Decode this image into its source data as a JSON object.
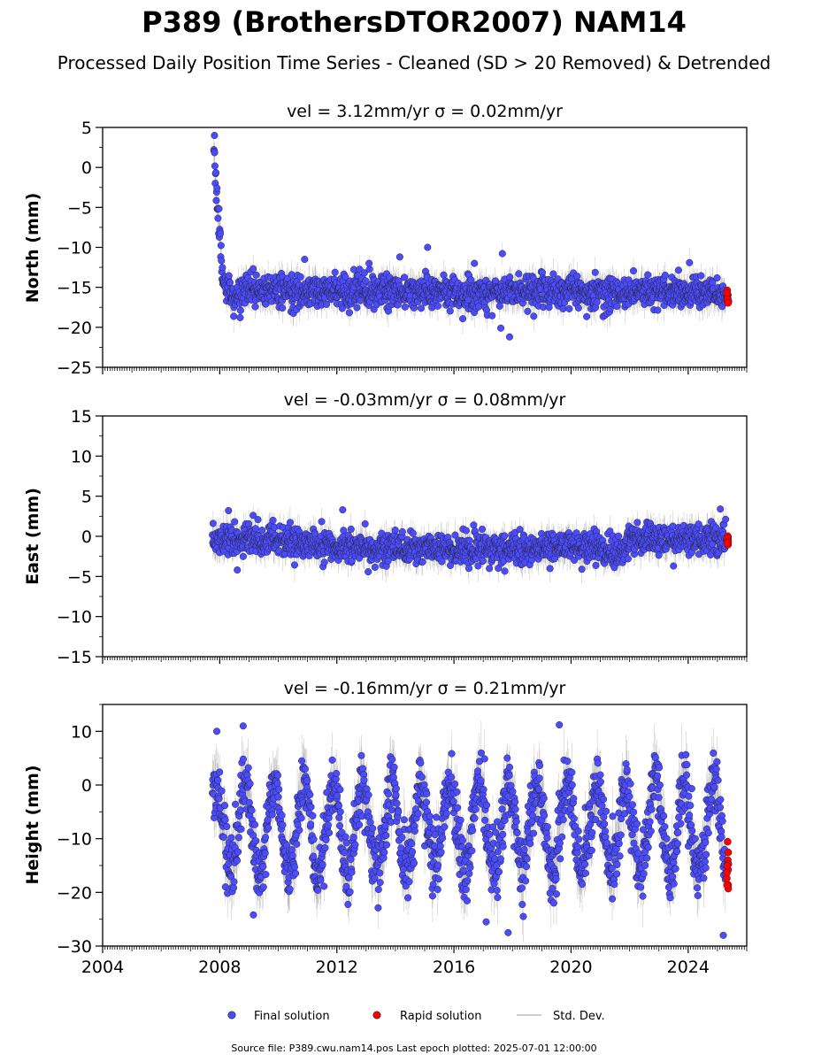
{
  "title": "P389 (BrothersDTOR2007) NAM14",
  "subtitle": "Processed Daily Position Time Series - Cleaned (SD > 20 Removed) & Detrended",
  "footer": "Source file: P389.cwu.nam14.pos  Last epoch plotted: 2025-07-01 12:00:00",
  "legend": {
    "placement": "bottom-center",
    "items": [
      {
        "label": "Final solution",
        "color": "#4B4BFF",
        "marker": "dot"
      },
      {
        "label": "Rapid solution",
        "color": "#FF0000",
        "marker": "dot"
      },
      {
        "label": "Std. Dev.",
        "color": "#cfcfcf",
        "marker": "line"
      }
    ]
  },
  "colors": {
    "final": "#4B4BFF",
    "rapid": "#FF0000",
    "errorbar": "#777777",
    "edge": "#222222"
  },
  "chart_data": [
    {
      "type": "scatter",
      "panel": "north",
      "title": "vel = 3.12mm/yr   σ = 0.02mm/yr",
      "ylabel": "North (mm)",
      "xlim": [
        2004,
        2026
      ],
      "ylim": [
        -25,
        5
      ],
      "yticks": [
        5,
        0,
        -5,
        -10,
        -15,
        -20,
        -25
      ],
      "yticklabels": [
        "5",
        "0",
        "−5",
        "−10",
        "−15",
        "−20",
        "−25"
      ],
      "xticks": [
        2004,
        2008,
        2012,
        2016,
        2020,
        2024
      ],
      "xticklabels": [],
      "grid": false,
      "data_span": [
        2007.8,
        2025.35
      ],
      "series": [
        {
          "role": "final",
          "x": [
            2007.8,
            2007.85,
            2007.9,
            2007.95,
            2008.0,
            2008.05,
            2008.1,
            2008.2,
            2008.5,
            2009.0,
            2010.0,
            2011.0,
            2012.0,
            2013.0,
            2014.0,
            2015.0,
            2016.0,
            2017.0,
            2018.0,
            2019.0,
            2020.0,
            2021.0,
            2022.0,
            2023.0,
            2024.0,
            2025.3
          ],
          "y": [
            2.0,
            0.0,
            -3.0,
            -6.0,
            -9.0,
            -12.0,
            -14.0,
            -15.0,
            -16.0,
            -15.5,
            -15.5,
            -15.5,
            -15.5,
            -15.5,
            -15.5,
            -15.5,
            -15.6,
            -15.6,
            -15.5,
            -15.5,
            -15.5,
            -15.5,
            -15.5,
            -15.5,
            -15.5,
            -15.8
          ],
          "scatter_sd": 1.0,
          "errorbar_sd": 1.4
        },
        {
          "role": "rapid",
          "x": [
            2025.35
          ],
          "y": [
            -16.0
          ],
          "scatter_sd": 0.5
        },
        {
          "role": "outliers",
          "x": [
            2007.82,
            2010.9,
            2013.1,
            2014.15,
            2015.1,
            2016.7,
            2017.9,
            2017.6
          ],
          "y": [
            4.0,
            -11.5,
            -12.0,
            -11.2,
            -10.0,
            -12.0,
            -21.2,
            -20.1
          ]
        }
      ]
    },
    {
      "type": "scatter",
      "panel": "east",
      "title": "vel = -0.03mm/yr   σ = 0.08mm/yr",
      "ylabel": "East (mm)",
      "xlim": [
        2004,
        2026
      ],
      "ylim": [
        -15,
        15
      ],
      "yticks": [
        15,
        10,
        5,
        0,
        -5,
        -10,
        -15
      ],
      "yticklabels": [
        "15",
        "10",
        "5",
        "0",
        "−5",
        "−10",
        "−15"
      ],
      "xticks": [
        2004,
        2008,
        2012,
        2016,
        2020,
        2024
      ],
      "xticklabels": [],
      "grid": false,
      "data_span": [
        2007.75,
        2025.35
      ],
      "series": [
        {
          "role": "final",
          "x": [
            2007.75,
            2009.0,
            2010.0,
            2011.0,
            2012.0,
            2013.0,
            2014.0,
            2015.0,
            2016.0,
            2017.0,
            2018.0,
            2019.0,
            2020.0,
            2021.0,
            2021.5,
            2022.0,
            2023.0,
            2024.0,
            2025.3
          ],
          "y": [
            -0.5,
            -0.3,
            -0.5,
            -1.0,
            -1.3,
            -1.4,
            -1.5,
            -1.6,
            -1.6,
            -1.5,
            -1.4,
            -1.4,
            -1.3,
            -1.4,
            -2.5,
            -0.5,
            -0.4,
            -0.4,
            -0.6
          ],
          "scatter_sd": 0.9,
          "errorbar_sd": 1.4
        },
        {
          "role": "rapid",
          "x": [
            2025.35
          ],
          "y": [
            -0.5
          ],
          "scatter_sd": 0.4
        },
        {
          "role": "outliers",
          "x": [
            2008.3,
            2008.6,
            2012.2,
            2025.1,
            2023.5
          ],
          "y": [
            3.2,
            -4.2,
            3.3,
            3.4,
            -3.7
          ]
        }
      ]
    },
    {
      "type": "scatter",
      "panel": "height",
      "title": "vel = -0.16mm/yr   σ = 0.21mm/yr",
      "ylabel": "Height (mm)",
      "xlim": [
        2004,
        2026
      ],
      "ylim": [
        -30,
        15
      ],
      "yticks": [
        10,
        0,
        -10,
        -20,
        -30
      ],
      "yticklabels": [
        "10",
        "0",
        "−10",
        "−20",
        "−30"
      ],
      "xticks": [
        2004,
        2008,
        2012,
        2016,
        2020,
        2024
      ],
      "xticklabels": [
        "2004",
        "2008",
        "2012",
        "2016",
        "2020",
        "2024"
      ],
      "grid": false,
      "data_span": [
        2007.75,
        2025.35
      ],
      "seasonal": {
        "mean": -8.0,
        "amplitude": 8.0,
        "period_years": 1.0,
        "phase_years": 0.62
      },
      "series": [
        {
          "role": "final",
          "x": [
            2007.75,
            2025.3
          ],
          "y": [
            -8.0,
            -8.0
          ],
          "scatter_sd": 3.0,
          "errorbar_sd": 4.0
        },
        {
          "role": "rapid",
          "x": [
            2025.35
          ],
          "y": [
            -16.0
          ],
          "scatter_sd": 2.3
        },
        {
          "role": "outliers",
          "x": [
            2007.9,
            2008.8,
            2019.6,
            2009.15,
            2017.1,
            2017.85,
            2025.2
          ],
          "y": [
            10.0,
            11.0,
            11.2,
            -24.2,
            -25.5,
            -27.5,
            -28.0
          ]
        }
      ]
    }
  ]
}
